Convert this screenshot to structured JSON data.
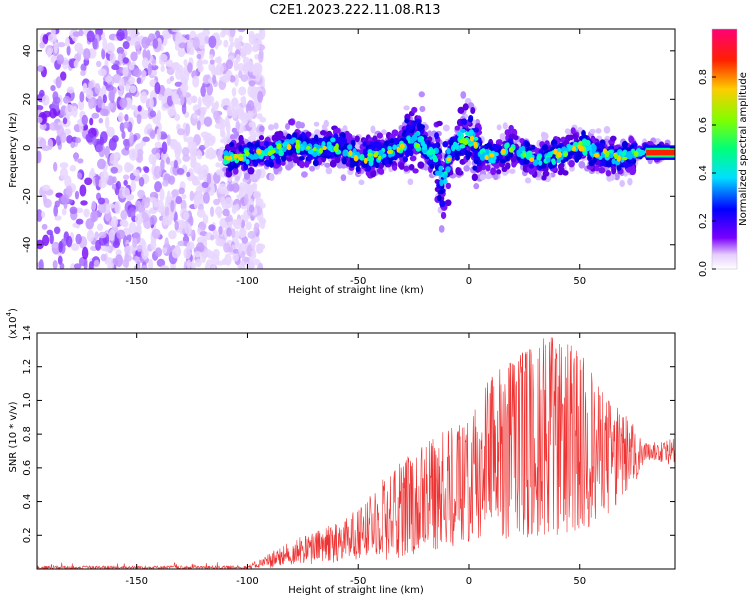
{
  "title": "C2E1.2023.222.11.08.R13",
  "chart_data": [
    {
      "type": "heatmap",
      "xlabel": "Height of straight line (km)",
      "ylabel": "Frequency (Hz)",
      "xlim": [
        -195,
        93
      ],
      "ylim": [
        -50,
        49
      ],
      "xticks": [
        -150,
        -100,
        -50,
        0,
        50
      ],
      "yticks": [
        -40,
        -20,
        0,
        20,
        40
      ],
      "colorbar": {
        "label": "Normalized spectral amplitude",
        "range": [
          0,
          1
        ],
        "ticks": [
          "0.0",
          "0.2",
          "0.4",
          "0.6",
          "0.8"
        ],
        "colormap": "rainbow (white/violet at 0 to red/pink at 1)"
      },
      "ridge_center_hz": [
        {
          "x": -110,
          "y": -4
        },
        {
          "x": -100,
          "y": -3
        },
        {
          "x": -90,
          "y": -2
        },
        {
          "x": -80,
          "y": 2
        },
        {
          "x": -70,
          "y": -1
        },
        {
          "x": -60,
          "y": 1
        },
        {
          "x": -50,
          "y": -4
        },
        {
          "x": -40,
          "y": -3
        },
        {
          "x": -30,
          "y": 0
        },
        {
          "x": -25,
          "y": 6
        },
        {
          "x": -20,
          "y": 0
        },
        {
          "x": -15,
          "y": -4
        },
        {
          "x": -12,
          "y": -14
        },
        {
          "x": -8,
          "y": -2
        },
        {
          "x": -3,
          "y": 4
        },
        {
          "x": 0,
          "y": 5
        },
        {
          "x": 5,
          "y": -3
        },
        {
          "x": 10,
          "y": -4
        },
        {
          "x": 20,
          "y": 0
        },
        {
          "x": 30,
          "y": -5
        },
        {
          "x": 40,
          "y": -3
        },
        {
          "x": 50,
          "y": 1
        },
        {
          "x": 60,
          "y": -3
        },
        {
          "x": 70,
          "y": -4
        },
        {
          "x": 80,
          "y": -1
        },
        {
          "x": 90,
          "y": -2
        }
      ],
      "noise_region_x": [
        -195,
        -93
      ]
    },
    {
      "type": "line",
      "xlabel": "Height of straight line (km)",
      "ylabel": "SNR (10 * v/v)",
      "y_multiplier_label": "(x10",
      "y_multiplier_exponent": "4",
      "y_multiplier_close": ")",
      "xlim": [
        -195,
        93
      ],
      "ylim": [
        0,
        1.4
      ],
      "xticks": [
        -150,
        -100,
        -50,
        0,
        50
      ],
      "yticks": [
        "0.2",
        "0.4",
        "0.6",
        "0.8",
        "1.0",
        "1.2",
        "1.4"
      ],
      "series": [
        {
          "color": "#ee3333",
          "envelope": [
            {
              "x": -195,
              "min": 0.0,
              "max": 0.02
            },
            {
              "x": -100,
              "min": 0.0,
              "max": 0.02
            },
            {
              "x": -90,
              "min": 0.0,
              "max": 0.1
            },
            {
              "x": -75,
              "min": 0.02,
              "max": 0.2
            },
            {
              "x": -50,
              "min": 0.05,
              "max": 0.35
            },
            {
              "x": -35,
              "min": 0.05,
              "max": 0.6
            },
            {
              "x": -20,
              "min": 0.1,
              "max": 0.75
            },
            {
              "x": 0,
              "min": 0.15,
              "max": 0.9
            },
            {
              "x": 10,
              "min": 0.2,
              "max": 1.15
            },
            {
              "x": 20,
              "min": 0.15,
              "max": 1.25
            },
            {
              "x": 35,
              "min": 0.2,
              "max": 1.38
            },
            {
              "x": 45,
              "min": 0.2,
              "max": 1.38
            },
            {
              "x": 55,
              "min": 0.25,
              "max": 1.2
            },
            {
              "x": 65,
              "min": 0.35,
              "max": 1.0
            },
            {
              "x": 75,
              "min": 0.5,
              "max": 0.85
            },
            {
              "x": 80,
              "min": 0.65,
              "max": 0.75
            },
            {
              "x": 93,
              "min": 0.6,
              "max": 0.78
            }
          ]
        }
      ]
    }
  ]
}
